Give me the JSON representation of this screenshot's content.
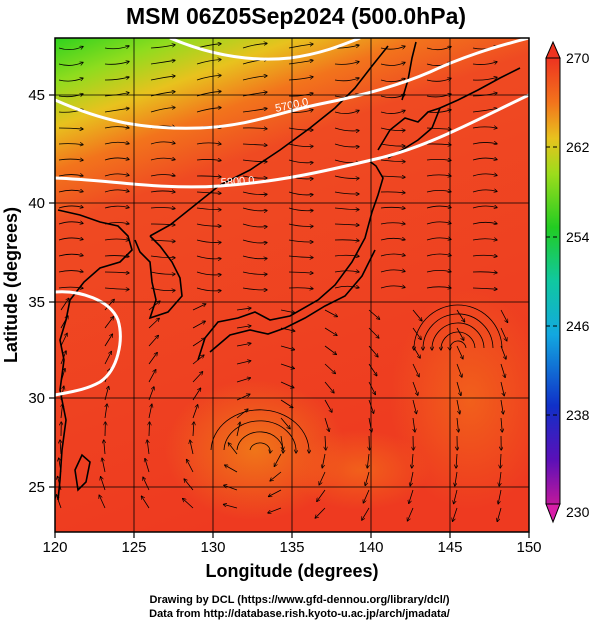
{
  "title": "MSM 06Z05Sep2024 (500.0hPa)",
  "x_axis": {
    "label": "Longitude (degrees)",
    "ticks": [
      "120",
      "125",
      "130",
      "135",
      "140",
      "145",
      "150"
    ]
  },
  "y_axis": {
    "label": "Latitude  (degrees)",
    "ticks": [
      "45",
      "40",
      "35",
      "30",
      "25"
    ]
  },
  "colorbar": {
    "ticks": [
      "270",
      "262",
      "254",
      "246",
      "238",
      "230"
    ],
    "min": 230,
    "max": 270
  },
  "contours": [
    {
      "label": "5700.0"
    },
    {
      "label": "5800.0"
    }
  ],
  "credits": {
    "line1": "Drawing by DCL (https://www.gfd-dennou.org/library/dcl/)",
    "line2": "Data from http://database.rish.kyoto-u.ac.jp/arch/jmadata/"
  },
  "map": {
    "lon_range": [
      120,
      150
    ],
    "lat_range": [
      22.5,
      47.5
    ],
    "field": "temperature (K) with streamlines",
    "colors": {
      "warm": "#ee3320",
      "hot": "#f05a1a",
      "cool": "#8fdc1e",
      "cold": "#22cc22",
      "contour": "#ffffff",
      "coast": "#000000"
    }
  }
}
